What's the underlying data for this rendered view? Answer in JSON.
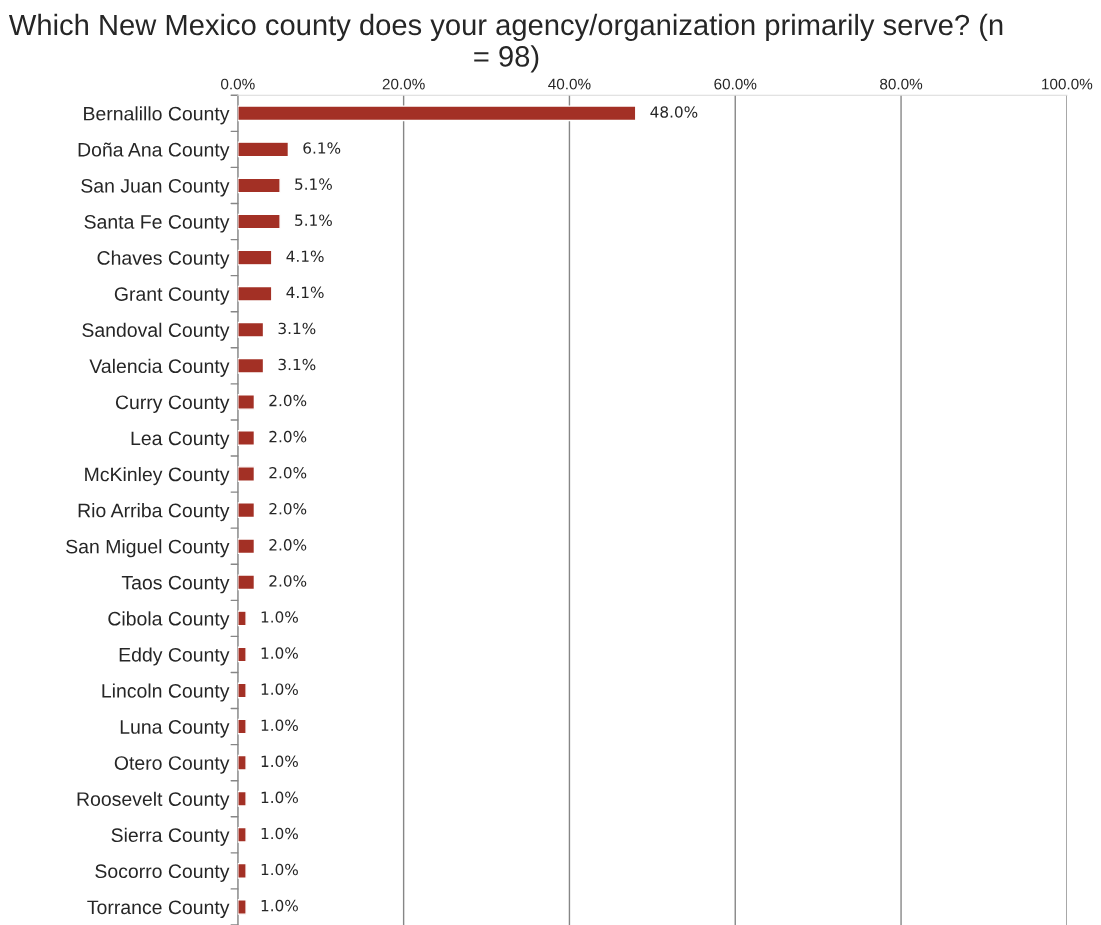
{
  "chart_data": {
    "type": "bar",
    "orientation": "horizontal",
    "title": "Which New Mexico county does your agency/organization primarily serve? (n = 98)",
    "categories": [
      "Bernalillo County",
      "Doña Ana County",
      "San Juan County",
      "Santa Fe County",
      "Chaves County",
      "Grant County",
      "Sandoval County",
      "Valencia County",
      "Curry County",
      "Lea County",
      "McKinley County",
      "Rio Arriba County",
      "San Miguel County",
      "Taos County",
      "Cibola County",
      "Eddy County",
      "Lincoln County",
      "Luna County",
      "Otero County",
      "Roosevelt County",
      "Sierra County",
      "Socorro County",
      "Torrance County"
    ],
    "values": [
      48.0,
      6.1,
      5.1,
      5.1,
      4.1,
      4.1,
      3.1,
      3.1,
      2.0,
      2.0,
      2.0,
      2.0,
      2.0,
      2.0,
      1.0,
      1.0,
      1.0,
      1.0,
      1.0,
      1.0,
      1.0,
      1.0,
      1.0
    ],
    "value_labels": [
      "48.0%",
      "6.1%",
      "5.1%",
      "5.1%",
      "4.1%",
      "4.1%",
      "3.1%",
      "3.1%",
      "2.0%",
      "2.0%",
      "2.0%",
      "2.0%",
      "2.0%",
      "2.0%",
      "1.0%",
      "1.0%",
      "1.0%",
      "1.0%",
      "1.0%",
      "1.0%",
      "1.0%",
      "1.0%",
      "1.0%"
    ],
    "color": "#a33025",
    "xlim": [
      0,
      100
    ],
    "xticks": [
      {
        "value": 0,
        "label": "0.0%"
      },
      {
        "value": 20,
        "label": "20.0%"
      },
      {
        "value": 40,
        "label": "40.0%"
      },
      {
        "value": 60,
        "label": "60.0%"
      },
      {
        "value": 80,
        "label": "80.0%"
      },
      {
        "value": 100,
        "label": "100.0%"
      }
    ],
    "grid": "x",
    "legend": false
  }
}
